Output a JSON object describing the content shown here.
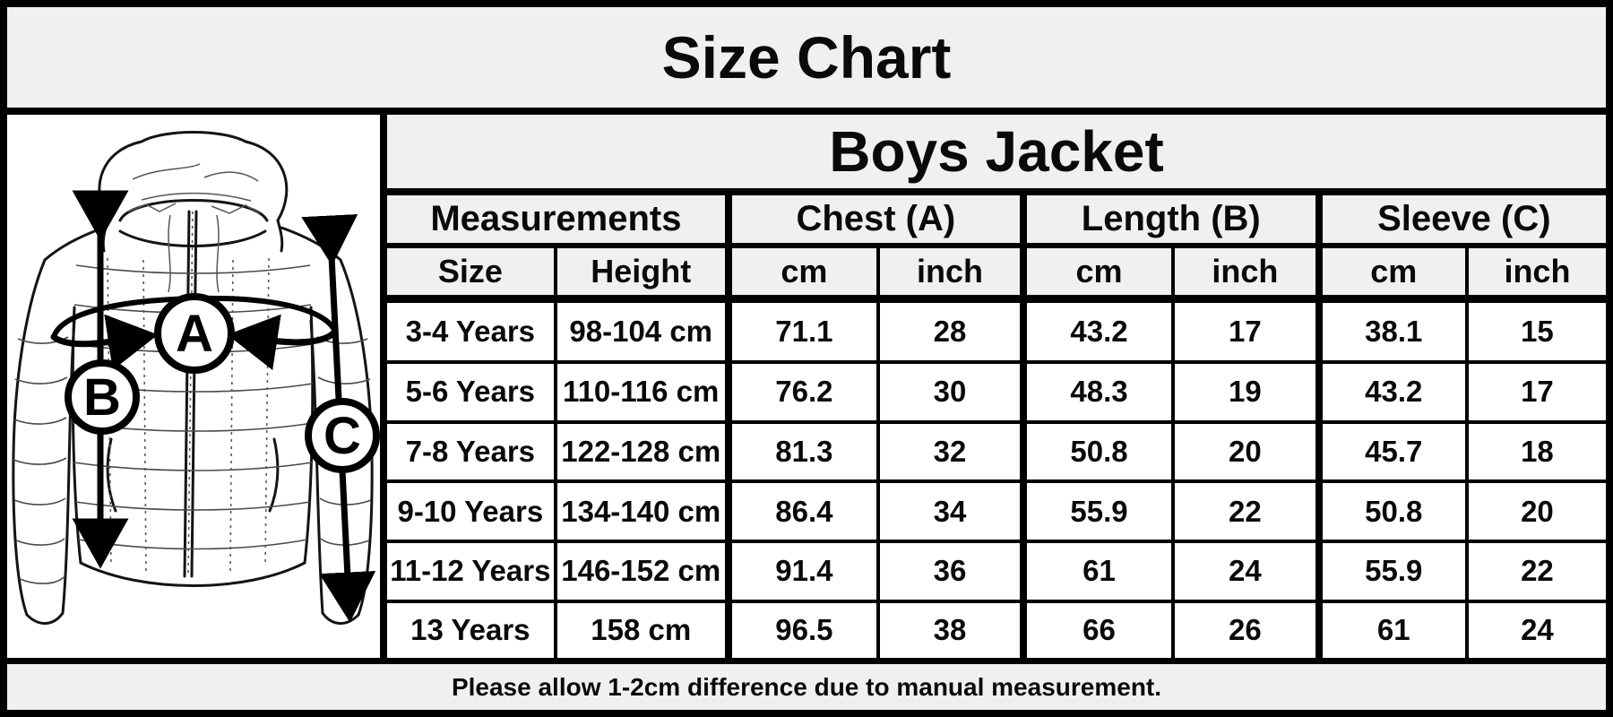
{
  "title": "Size Chart",
  "footer_note": "Please allow 1-2cm difference due to manual measurement.",
  "diagram": {
    "labels": {
      "chest": "A",
      "length": "B",
      "sleeve": "C"
    }
  },
  "chart_data": {
    "type": "table",
    "title": "Boys Jacket",
    "column_groups": [
      {
        "label": "Measurements",
        "span": 2
      },
      {
        "label": "Chest (A)",
        "span": 2
      },
      {
        "label": "Length (B)",
        "span": 2
      },
      {
        "label": "Sleeve (C)",
        "span": 2
      }
    ],
    "columns": [
      "Size",
      "Height",
      "cm",
      "inch",
      "cm",
      "inch",
      "cm",
      "inch"
    ],
    "rows": [
      [
        "3-4 Years",
        "98-104 cm",
        "71.1",
        "28",
        "43.2",
        "17",
        "38.1",
        "15"
      ],
      [
        "5-6 Years",
        "110-116 cm",
        "76.2",
        "30",
        "48.3",
        "19",
        "43.2",
        "17"
      ],
      [
        "7-8 Years",
        "122-128 cm",
        "81.3",
        "32",
        "50.8",
        "20",
        "45.7",
        "18"
      ],
      [
        "9-10 Years",
        "134-140 cm",
        "86.4",
        "34",
        "55.9",
        "22",
        "50.8",
        "20"
      ],
      [
        "11-12 Years",
        "146-152 cm",
        "91.4",
        "36",
        "61",
        "24",
        "55.9",
        "22"
      ],
      [
        "13 Years",
        "158 cm",
        "96.5",
        "38",
        "66",
        "26",
        "61",
        "24"
      ]
    ]
  },
  "colors": {
    "panel_background": "#f0f0f0",
    "cell_background": "#ffffff",
    "border": "#000000",
    "text": "#0a0a0a"
  }
}
